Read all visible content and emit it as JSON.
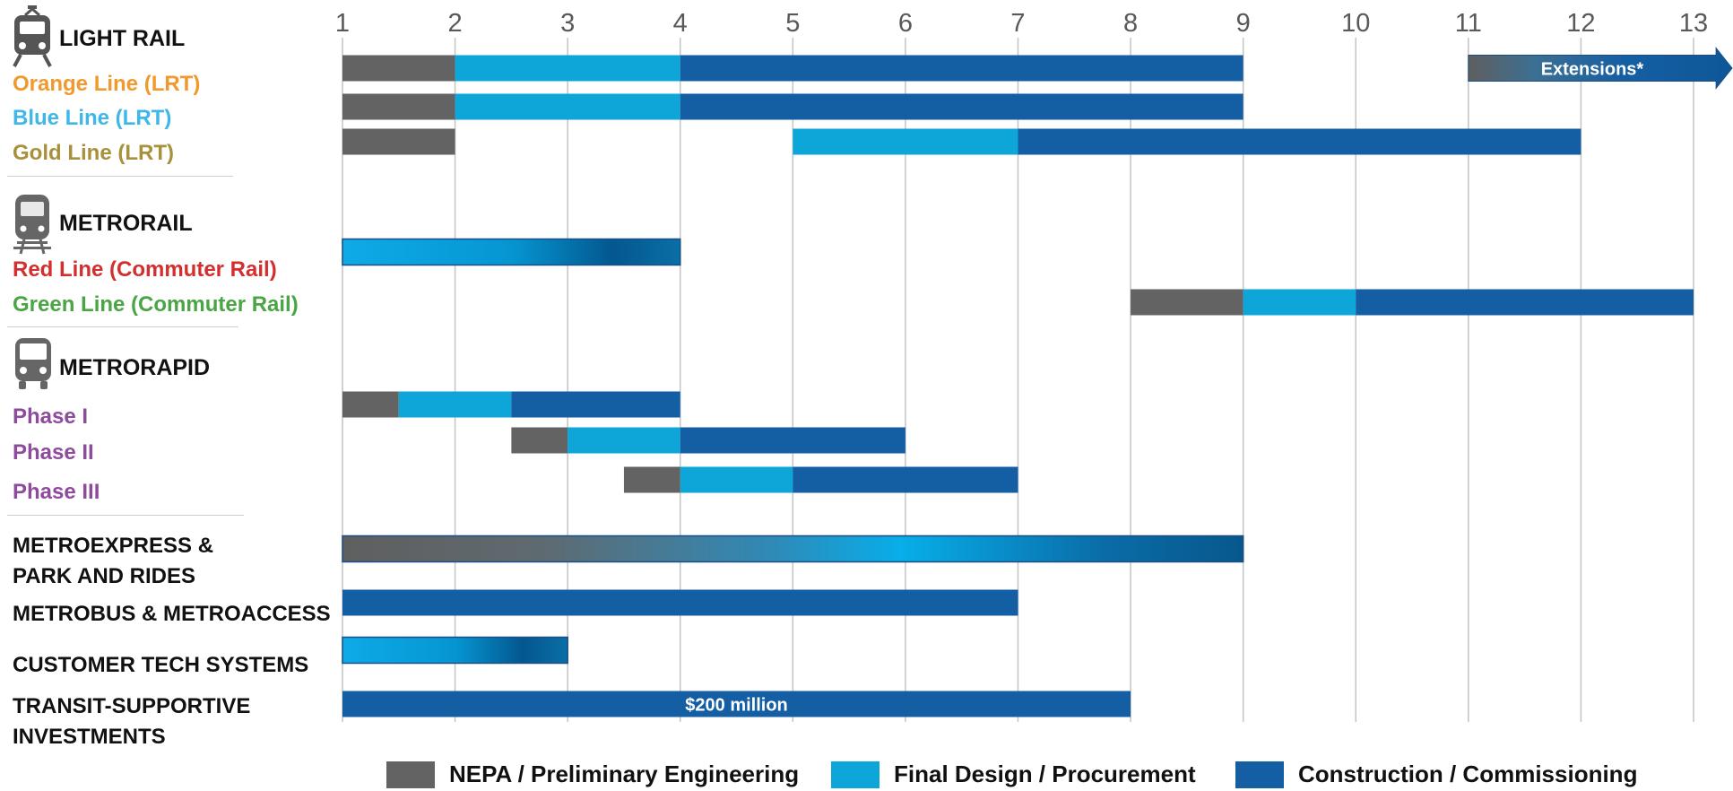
{
  "chart_data": {
    "type": "gantt",
    "x_ticks": [
      1,
      2,
      3,
      4,
      5,
      6,
      7,
      8,
      9,
      10,
      11,
      12,
      13
    ],
    "xlim": [
      1,
      13
    ],
    "grid": true,
    "legend": [
      {
        "key": "nepa",
        "label": "NEPA / Preliminary Engineering",
        "color": "#636363"
      },
      {
        "key": "design",
        "label": "Final Design / Procurement",
        "color": "#0ea5d8"
      },
      {
        "key": "construction",
        "label": "Construction / Commissioning",
        "color": "#145ea3"
      }
    ],
    "legend_position": "bottom",
    "sections": [
      {
        "id": "light-rail",
        "title": "LIGHT RAIL",
        "icon": "light-rail-icon"
      },
      {
        "id": "metrorail",
        "title": "METRORAIL",
        "icon": "commuter-train-icon"
      },
      {
        "id": "metrorapid",
        "title": "METRORAPID",
        "icon": "bus-icon"
      }
    ],
    "rows": [
      {
        "id": "orange-line",
        "label": "Orange Line (LRT)",
        "color": "#f2992e",
        "segments": [
          {
            "phase": "nepa",
            "start": 1,
            "end": 2
          },
          {
            "phase": "design",
            "start": 2,
            "end": 4
          },
          {
            "phase": "construction",
            "start": 4,
            "end": 9
          },
          {
            "phase": "extension",
            "start": 11,
            "end": 13.2,
            "label": "Extensions*"
          }
        ]
      },
      {
        "id": "blue-line",
        "label": "Blue Line (LRT)",
        "color": "#3fb7e8",
        "segments": [
          {
            "phase": "nepa",
            "start": 1,
            "end": 2
          },
          {
            "phase": "design",
            "start": 2,
            "end": 4
          },
          {
            "phase": "construction",
            "start": 4,
            "end": 9
          }
        ]
      },
      {
        "id": "gold-line",
        "label": "Gold Line (LRT)",
        "color": "#a8913a",
        "segments": [
          {
            "phase": "nepa",
            "start": 1,
            "end": 2
          },
          {
            "phase": "design",
            "start": 5,
            "end": 7
          },
          {
            "phase": "construction",
            "start": 7,
            "end": 12
          }
        ]
      },
      {
        "id": "red-line",
        "label": "Red Line (Commuter Rail)",
        "color": "#d32f2f",
        "segments": [
          {
            "phase": "gradient-light",
            "start": 1,
            "end": 4
          }
        ]
      },
      {
        "id": "green-line",
        "label": "Green Line (Commuter Rail)",
        "color": "#4aa544",
        "segments": [
          {
            "phase": "nepa",
            "start": 8,
            "end": 9
          },
          {
            "phase": "design",
            "start": 9,
            "end": 10
          },
          {
            "phase": "construction",
            "start": 10,
            "end": 13
          }
        ]
      },
      {
        "id": "phase-i",
        "label": "Phase I",
        "color": "#8e4a9c",
        "segments": [
          {
            "phase": "nepa",
            "start": 1,
            "end": 1.5
          },
          {
            "phase": "design",
            "start": 1.5,
            "end": 2.5
          },
          {
            "phase": "construction",
            "start": 2.5,
            "end": 4
          }
        ]
      },
      {
        "id": "phase-ii",
        "label": "Phase II",
        "color": "#8e4a9c",
        "segments": [
          {
            "phase": "nepa",
            "start": 2.5,
            "end": 3
          },
          {
            "phase": "design",
            "start": 3,
            "end": 4
          },
          {
            "phase": "construction",
            "start": 4,
            "end": 6
          }
        ]
      },
      {
        "id": "phase-iii",
        "label": "Phase III",
        "color": "#8e4a9c",
        "segments": [
          {
            "phase": "nepa",
            "start": 3.5,
            "end": 4
          },
          {
            "phase": "design",
            "start": 4,
            "end": 5
          },
          {
            "phase": "construction",
            "start": 5,
            "end": 7
          }
        ]
      },
      {
        "id": "metroexpress",
        "label_lines": [
          "METROEXPRESS &",
          "PARK AND RIDES"
        ],
        "color": "#111111",
        "segments": [
          {
            "phase": "gradient-full",
            "start": 1,
            "end": 9
          }
        ]
      },
      {
        "id": "metrobus",
        "label": "METROBUS & METROACCESS",
        "color": "#111111",
        "segments": [
          {
            "phase": "construction",
            "start": 1,
            "end": 7
          }
        ]
      },
      {
        "id": "customer-tech",
        "label": "CUSTOMER TECH SYSTEMS",
        "color": "#111111",
        "segments": [
          {
            "phase": "gradient-light",
            "start": 1,
            "end": 3
          }
        ]
      },
      {
        "id": "transit-supportive",
        "label_lines": [
          "TRANSIT-SUPPORTIVE",
          "INVESTMENTS"
        ],
        "color": "#111111",
        "segments": [
          {
            "phase": "construction",
            "start": 1,
            "end": 8,
            "label": "$200 million"
          }
        ]
      }
    ]
  }
}
